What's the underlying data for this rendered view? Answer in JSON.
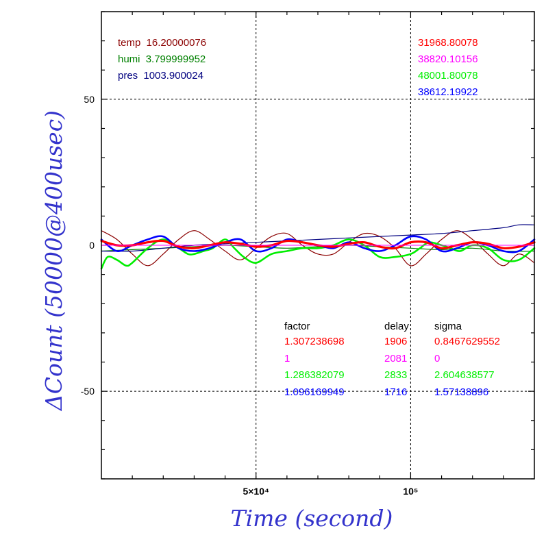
{
  "chart_data": {
    "type": "line",
    "xlabel": "Time (second)",
    "ylabel": "ΔCount (50000@400usec)",
    "xlim": [
      0,
      140000
    ],
    "ylim": [
      -80,
      80
    ],
    "x_tick_labels": [
      {
        "value": 50000,
        "label": "5×10⁴"
      },
      {
        "value": 100000,
        "label": "10⁵"
      }
    ],
    "y_tick_labels": [
      {
        "value": 50,
        "label": "50"
      },
      {
        "value": 0,
        "label": "0"
      },
      {
        "value": -50,
        "label": "-50"
      }
    ],
    "grid": true,
    "colors": {
      "dark_red": "#8b0000",
      "green_dark": "#008000",
      "navy": "#000080",
      "red": "#ff0000",
      "magenta": "#ff00ff",
      "green": "#00ee00",
      "blue": "#0000ff"
    },
    "env_info": [
      {
        "label": "temp",
        "value": "16.20000076",
        "color": "#8b0000"
      },
      {
        "label": "humi",
        "value": "3.799999952",
        "color": "#008000"
      },
      {
        "label": "pres",
        "value": "1003.900024",
        "color": "#000080"
      }
    ],
    "counts": [
      {
        "value": "31968.80078",
        "color": "#ff0000"
      },
      {
        "value": "38820.10156",
        "color": "#ff00ff"
      },
      {
        "value": "48001.80078",
        "color": "#00ee00"
      },
      {
        "value": "38612.19922",
        "color": "#0000ff"
      }
    ],
    "param_table": {
      "headers": [
        "factor",
        "delay",
        "sigma"
      ],
      "rows": [
        {
          "factor": "1.307238698",
          "delay": "1906",
          "sigma": "0.8467629552",
          "color": "#ff0000"
        },
        {
          "factor": "1",
          "delay": "2081",
          "sigma": "0",
          "color": "#ff00ff"
        },
        {
          "factor": "1.286382079",
          "delay": "2833",
          "sigma": "2.604638577",
          "color": "#00ee00"
        },
        {
          "factor": "1.096169949",
          "delay": "1716",
          "sigma": "1.57138896",
          "color": "#0000ff"
        }
      ]
    },
    "series": [
      {
        "color": "#8b0000",
        "width": 1.2,
        "x": [
          0,
          5000,
          10000,
          15000,
          20000,
          25000,
          30000,
          35000,
          40000,
          45000,
          50000,
          55000,
          60000,
          65000,
          70000,
          75000,
          80000,
          85000,
          90000,
          95000,
          100000,
          105000,
          110000,
          115000,
          120000,
          125000,
          130000,
          135000,
          140000
        ],
        "y": [
          5,
          2,
          -3,
          -7,
          -3,
          2,
          5,
          2,
          -2,
          -5,
          -1,
          3,
          4,
          0,
          -3,
          -3,
          1,
          4,
          3,
          -1,
          -7,
          -3,
          2,
          5,
          2,
          -3,
          -7,
          -3,
          -6
        ]
      },
      {
        "color": "#008000",
        "width": 1.2,
        "x": [
          0,
          10000,
          20000,
          30000,
          40000,
          50000,
          60000,
          70000,
          80000,
          90000,
          100000,
          110000,
          120000,
          130000,
          140000
        ],
        "y": [
          -2,
          -1.5,
          -1,
          -0.5,
          0,
          -0.5,
          -1,
          -0.5,
          0,
          -0.5,
          -1,
          -1.5,
          -1,
          -2,
          -2
        ]
      },
      {
        "color": "#000080",
        "width": 1.2,
        "x": [
          0,
          10000,
          20000,
          30000,
          40000,
          50000,
          60000,
          70000,
          80000,
          90000,
          100000,
          110000,
          120000,
          130000,
          135000,
          140000
        ],
        "y": [
          -2,
          -2,
          -1,
          0,
          0.5,
          1,
          1.5,
          2,
          2.5,
          3,
          3.5,
          4,
          5,
          6,
          7,
          7
        ]
      },
      {
        "color": "#00ee00",
        "width": 2.6,
        "x": [
          0,
          2000,
          5000,
          8000,
          10000,
          15000,
          20000,
          25000,
          28000,
          30000,
          33000,
          36000,
          40000,
          43000,
          46000,
          50000,
          55000,
          60000,
          65000,
          70000,
          75000,
          80000,
          85000,
          90000,
          95000,
          100000,
          103000,
          106000,
          110000,
          113000,
          116000,
          120000,
          125000,
          130000,
          135000,
          140000
        ],
        "y": [
          -8,
          -4,
          -5,
          -7,
          -6,
          -1,
          2,
          -1,
          -3,
          -3,
          -2,
          -1,
          2,
          -1,
          -4,
          -6,
          -3,
          -2,
          -1,
          -1,
          0,
          2,
          0,
          -4,
          -4,
          -3,
          -1,
          1,
          0,
          -1,
          -2,
          0,
          -1,
          -5,
          -5,
          -1
        ]
      },
      {
        "color": "#0000ff",
        "width": 2.6,
        "x": [
          0,
          5000,
          10000,
          15000,
          20000,
          25000,
          30000,
          35000,
          40000,
          45000,
          50000,
          55000,
          60000,
          65000,
          70000,
          75000,
          80000,
          85000,
          90000,
          95000,
          100000,
          105000,
          110000,
          115000,
          120000,
          125000,
          130000,
          135000,
          140000
        ],
        "y": [
          2,
          -2,
          0,
          2,
          3,
          -1,
          -2,
          -1,
          1,
          2,
          -2,
          -1,
          2,
          1,
          0,
          -1,
          1,
          -1,
          -2,
          0,
          3,
          2,
          -2,
          -1,
          1,
          0,
          -2,
          -2,
          2
        ]
      },
      {
        "color": "#ff0000",
        "width": 3.2,
        "x": [
          0,
          5000,
          10000,
          15000,
          20000,
          25000,
          30000,
          35000,
          40000,
          45000,
          50000,
          55000,
          60000,
          65000,
          70000,
          75000,
          80000,
          85000,
          90000,
          95000,
          100000,
          105000,
          110000,
          115000,
          120000,
          125000,
          130000,
          135000,
          140000
        ],
        "y": [
          1.5,
          0,
          0,
          1,
          1.5,
          -0.5,
          -1,
          0,
          1,
          0.5,
          -0.5,
          0,
          1.5,
          1,
          0,
          -0.5,
          0.5,
          1,
          -0.5,
          -1,
          1,
          1,
          -1,
          0,
          1,
          0.5,
          -1,
          -0.5,
          1
        ]
      }
    ]
  }
}
